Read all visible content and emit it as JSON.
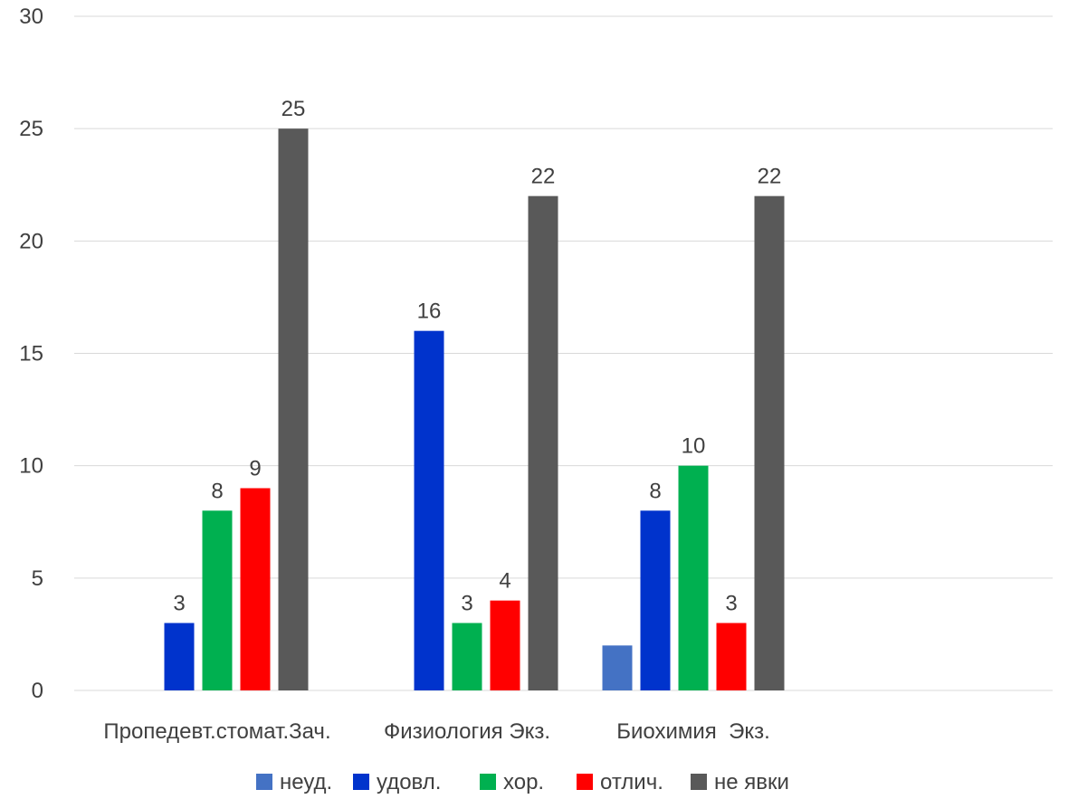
{
  "chart_data": {
    "type": "bar",
    "title": "",
    "xlabel": "",
    "ylabel": "",
    "ylim": [
      0,
      30
    ],
    "yticks": [
      0,
      5,
      10,
      15,
      20,
      25,
      30
    ],
    "grid": true,
    "legend_position": "bottom",
    "categories": [
      "Пропедевт.стомат.Зач.",
      "Физиология Экз.",
      "Биохимия  Экз."
    ],
    "series": [
      {
        "name": "неуд.",
        "color": "#4472c4",
        "values": [
          null,
          null,
          2
        ],
        "labels": [
          null,
          null,
          null
        ]
      },
      {
        "name": "удовл.",
        "color": "#0033cc",
        "values": [
          3,
          16,
          8
        ],
        "labels": [
          "3",
          "16",
          "8"
        ]
      },
      {
        "name": "хор.",
        "color": "#00b050",
        "values": [
          8,
          3,
          10
        ],
        "labels": [
          "8",
          "3",
          "10"
        ]
      },
      {
        "name": "отлич.",
        "color": "#ff0000",
        "values": [
          9,
          4,
          3
        ],
        "labels": [
          "9",
          "4",
          "3"
        ]
      },
      {
        "name": "не явки",
        "color": "#595959",
        "values": [
          25,
          22,
          22
        ],
        "labels": [
          "25",
          "22",
          "22"
        ]
      }
    ]
  }
}
